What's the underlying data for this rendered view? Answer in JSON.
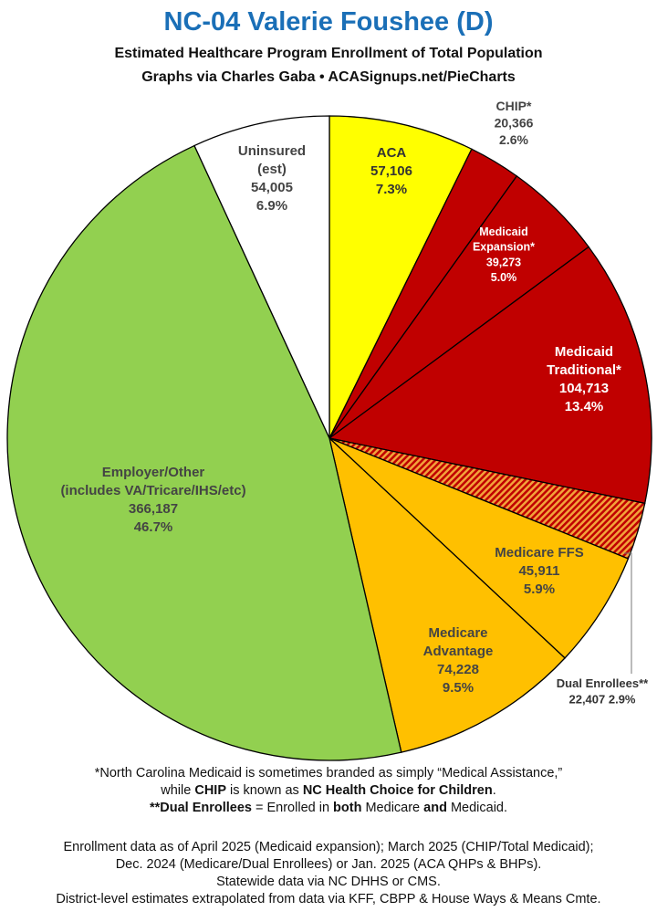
{
  "header": {
    "title": "NC-04 Valerie Foushee (D)",
    "subtitle": "Estimated Healthcare Program Enrollment of Total Population",
    "credit": "Graphs via Charles Gaba  •  ACASignups.net/PieCharts"
  },
  "chart_data": {
    "type": "pie",
    "title": "NC-04 Valerie Foushee (D)",
    "slices": [
      {
        "label": "ACA",
        "value": 57106,
        "value_text": "57,106",
        "percent": "7.3%",
        "color": "#ffff00",
        "pattern": "none",
        "label_color": "#333333"
      },
      {
        "label": "CHIP*",
        "value": 20366,
        "value_text": "20,366",
        "percent": "2.6%",
        "color": "#c00000",
        "pattern": "none",
        "label_color": "#444444"
      },
      {
        "label": "Medicaid Expansion*",
        "value": 39273,
        "value_text": "39,273",
        "percent": "5.0%",
        "color": "#c00000",
        "pattern": "none",
        "label_color": "#ffffff"
      },
      {
        "label": "Medicaid Traditional*",
        "value": 104713,
        "value_text": "104,713",
        "percent": "13.4%",
        "color": "#c00000",
        "pattern": "none",
        "label_color": "#ffffff"
      },
      {
        "label": "Dual Enrollees**",
        "value": 22407,
        "value_text": "22,407",
        "percent": "2.9%",
        "color": "#e8860c",
        "pattern": "hatched",
        "label_color": "#333333"
      },
      {
        "label": "Medicare FFS",
        "value": 45911,
        "value_text": "45,911",
        "percent": "5.9%",
        "color": "#ffc000",
        "pattern": "none",
        "label_color": "#444444"
      },
      {
        "label": "Medicare Advantage",
        "value": 74228,
        "value_text": "74,228",
        "percent": "9.5%",
        "color": "#ffc000",
        "pattern": "none",
        "label_color": "#444444"
      },
      {
        "label": "Employer/Other (includes VA/Tricare/IHS/etc)",
        "value": 366187,
        "value_text": "366,187",
        "percent": "46.7%",
        "color": "#92d050",
        "pattern": "none",
        "label_color": "#444444"
      },
      {
        "label": "Uninsured (est)",
        "value": 54005,
        "value_text": "54,005",
        "percent": "6.9%",
        "color": "#ffffff",
        "pattern": "none",
        "label_color": "#444444"
      }
    ]
  },
  "notes": {
    "line1": "*North Carolina Medicaid is sometimes branded as simply “Medical Assistance,”",
    "line2_pre": "while ",
    "line2_chip": "CHIP",
    "line2_mid": " is known as ",
    "line2_nc": "NC Health Choice for Children",
    "line2_end": ".",
    "line3_dual": "**Dual Enrollees",
    "line3_mid": " = Enrolled in ",
    "line3_both": "both",
    "line3_mid2": " Medicare ",
    "line3_and": "and",
    "line3_end": " Medicaid.",
    "source1": "Enrollment data as of April 2025 (Medicaid expansion); March 2025 (CHIP/Total Medicaid);",
    "source2": "Dec. 2024 (Medicare/Dual Enrollees) or Jan. 2025 (ACA QHPs & BHPs).",
    "source3": "Statewide data via NC DHHS or CMS.",
    "source4": "District-level estimates extrapolated from data via KFF, CBPP & House Ways & Means Cmte."
  }
}
